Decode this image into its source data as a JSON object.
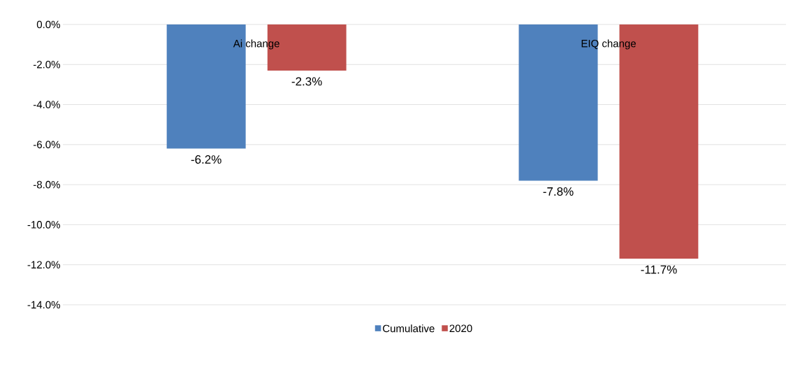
{
  "chart_data": {
    "type": "bar",
    "categories": [
      "Ai change",
      "EIQ change"
    ],
    "series": [
      {
        "name": "Cumulative",
        "color": "#4f81bd",
        "values": [
          -6.2,
          -7.8
        ],
        "value_labels": [
          "-6.2%",
          "-7.8%"
        ]
      },
      {
        "name": "2020",
        "color": "#c0504d",
        "values": [
          -2.3,
          -11.7
        ],
        "value_labels": [
          "-2.3%",
          "-11.7%"
        ]
      }
    ],
    "ylim": [
      -14,
      0
    ],
    "yticks": [
      {
        "value": 0,
        "label": "0.0%"
      },
      {
        "value": -2,
        "label": "-2.0%"
      },
      {
        "value": -4,
        "label": "-4.0%"
      },
      {
        "value": -6,
        "label": "-6.0%"
      },
      {
        "value": -8,
        "label": "-8.0%"
      },
      {
        "value": -10,
        "label": "-10.0%"
      },
      {
        "value": -12,
        "label": "-12.0%"
      },
      {
        "value": -14,
        "label": "-14.0%"
      }
    ],
    "grid": "y",
    "legend": "bottom"
  }
}
